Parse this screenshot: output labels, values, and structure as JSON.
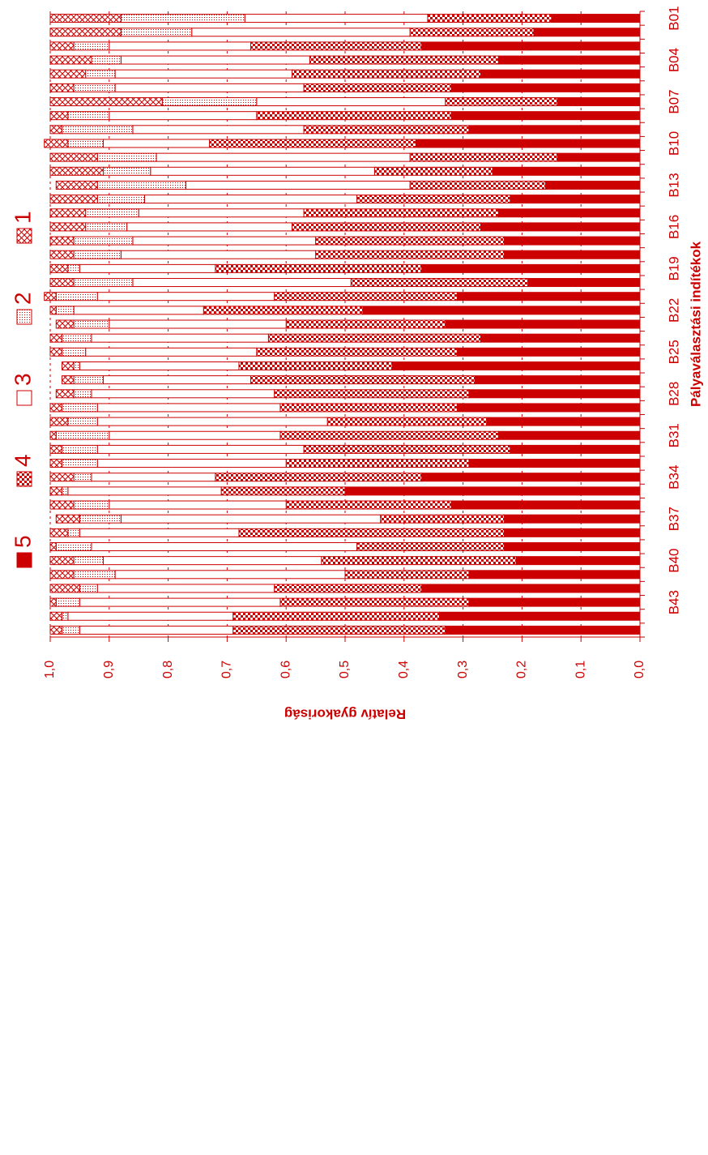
{
  "chart_data": {
    "type": "bar",
    "stacked": true,
    "orientation": "horizontal",
    "xlabel": "Relatív gyakoriság",
    "ylabel": "Pályaválasztási indítékok",
    "xlim": [
      0,
      1
    ],
    "x_tick_labels": [
      "0,0",
      "0,1",
      "0,2",
      "0,3",
      "0,4",
      "0,5",
      "0,6",
      "0,7",
      "0,8",
      "0,9",
      "1,0"
    ],
    "grid": true,
    "legend_position": "top",
    "colors": {
      "accent": "#cc0000",
      "background": "#ffffff"
    },
    "categories": [
      "B01",
      "B02",
      "B03",
      "B04",
      "B05",
      "B06",
      "B07",
      "B08",
      "B09",
      "B10",
      "B11",
      "B12",
      "B13",
      "B14",
      "B15",
      "B16",
      "B17",
      "B18",
      "B19",
      "B20",
      "B21",
      "B22",
      "B23",
      "B24",
      "B25",
      "B26",
      "B27",
      "B28",
      "B29",
      "B30",
      "B31",
      "B32",
      "B33",
      "B34",
      "B35",
      "B36",
      "B37",
      "B38",
      "B39",
      "B40",
      "B41",
      "B42",
      "B43",
      "B44",
      "B45"
    ],
    "category_labels_shown": [
      "B01",
      "B04",
      "B07",
      "B10",
      "B13",
      "B16",
      "B19",
      "B22",
      "B25",
      "B28",
      "B31",
      "B34",
      "B37",
      "B40",
      "B43"
    ],
    "series": [
      {
        "name": "5",
        "pattern": "solid",
        "values": [
          0.15,
          0.18,
          0.37,
          0.24,
          0.27,
          0.32,
          0.14,
          0.32,
          0.29,
          0.38,
          0.14,
          0.25,
          0.16,
          0.22,
          0.24,
          0.27,
          0.23,
          0.23,
          0.37,
          0.19,
          0.31,
          0.47,
          0.33,
          0.27,
          0.31,
          0.42,
          0.28,
          0.29,
          0.31,
          0.26,
          0.24,
          0.22,
          0.29,
          0.37,
          0.5,
          0.32,
          0.23,
          0.23,
          0.23,
          0.21,
          0.29,
          0.37,
          0.29,
          0.34,
          0.33
        ]
      },
      {
        "name": "4",
        "pattern": "checker",
        "values": [
          0.21,
          0.21,
          0.29,
          0.32,
          0.32,
          0.25,
          0.19,
          0.33,
          0.28,
          0.35,
          0.25,
          0.2,
          0.23,
          0.26,
          0.33,
          0.32,
          0.32,
          0.32,
          0.35,
          0.3,
          0.31,
          0.27,
          0.27,
          0.36,
          0.34,
          0.26,
          0.38,
          0.33,
          0.3,
          0.27,
          0.37,
          0.35,
          0.31,
          0.35,
          0.21,
          0.28,
          0.21,
          0.45,
          0.25,
          0.33,
          0.21,
          0.25,
          0.32,
          0.35,
          0.36
        ]
      },
      {
        "name": "3",
        "pattern": "blank",
        "values": [
          0.31,
          0.37,
          0.24,
          0.32,
          0.3,
          0.32,
          0.32,
          0.25,
          0.29,
          0.18,
          0.43,
          0.38,
          0.38,
          0.36,
          0.28,
          0.28,
          0.31,
          0.33,
          0.23,
          0.37,
          0.3,
          0.22,
          0.3,
          0.3,
          0.29,
          0.27,
          0.25,
          0.31,
          0.31,
          0.39,
          0.29,
          0.35,
          0.32,
          0.21,
          0.26,
          0.3,
          0.44,
          0.27,
          0.45,
          0.37,
          0.39,
          0.3,
          0.34,
          0.28,
          0.26
        ]
      },
      {
        "name": "2",
        "pattern": "dots",
        "values": [
          0.21,
          0.12,
          0.06,
          0.05,
          0.05,
          0.07,
          0.16,
          0.07,
          0.12,
          0.06,
          0.1,
          0.08,
          0.15,
          0.08,
          0.09,
          0.07,
          0.1,
          0.08,
          0.02,
          0.1,
          0.07,
          0.03,
          0.06,
          0.05,
          0.04,
          0.01,
          0.05,
          0.03,
          0.06,
          0.05,
          0.09,
          0.06,
          0.06,
          0.03,
          0.01,
          0.06,
          0.07,
          0.02,
          0.06,
          0.05,
          0.07,
          0.03,
          0.04,
          0.01,
          0.03
        ]
      },
      {
        "name": "1",
        "pattern": "crosshatch",
        "values": [
          0.12,
          0.12,
          0.04,
          0.07,
          0.06,
          0.04,
          0.19,
          0.03,
          0.02,
          0.04,
          0.08,
          0.09,
          0.07,
          0.08,
          0.06,
          0.06,
          0.04,
          0.04,
          0.03,
          0.04,
          0.02,
          0.01,
          0.03,
          0.02,
          0.02,
          0.02,
          0.02,
          0.03,
          0.02,
          0.03,
          0.01,
          0.02,
          0.02,
          0.04,
          0.02,
          0.04,
          0.04,
          0.03,
          0.01,
          0.04,
          0.04,
          0.05,
          0.01,
          0.02,
          0.02
        ]
      }
    ]
  }
}
